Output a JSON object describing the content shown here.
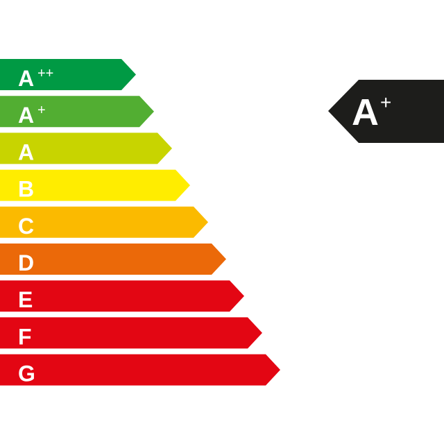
{
  "scale": [
    {
      "class": "A",
      "sup": "++",
      "color": "#009a44"
    },
    {
      "class": "A",
      "sup": "+",
      "color": "#52ae32"
    },
    {
      "class": "A",
      "sup": "",
      "color": "#c8d400"
    },
    {
      "class": "B",
      "sup": "",
      "color": "#ffed00"
    },
    {
      "class": "C",
      "sup": "",
      "color": "#fbba00"
    },
    {
      "class": "D",
      "sup": "",
      "color": "#eb6909"
    },
    {
      "class": "E",
      "sup": "",
      "color": "#e30613"
    },
    {
      "class": "F",
      "sup": "",
      "color": "#e30613"
    },
    {
      "class": "G",
      "sup": "",
      "color": "#e30613"
    }
  ],
  "rating": {
    "class": "A",
    "sup": "+",
    "color": "#1d1d1b"
  }
}
